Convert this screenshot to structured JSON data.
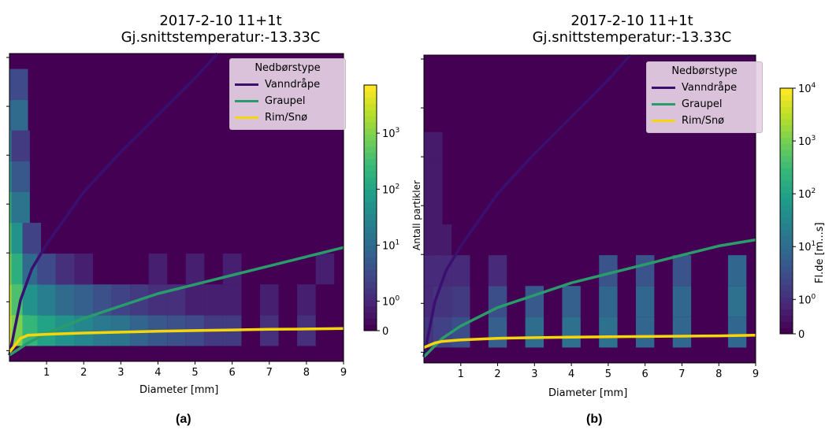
{
  "panels": [
    {
      "caption": "(a)",
      "title_line1": "2017-2-10 11+1t",
      "title_line2": "Gj.snittstemperatur:-13.33C",
      "xlabel": "Diameter [mm]",
      "ylabel": "",
      "xticks": [
        "1",
        "2",
        "3",
        "4",
        "5",
        "6",
        "7",
        "8",
        "9"
      ],
      "colorbar_ticks": [
        "0",
        "10^0",
        "10^1",
        "10^2",
        "10^3"
      ],
      "colorbar_label": "",
      "legend": {
        "title": "Nedbørstype",
        "items": [
          {
            "label": "Vanndråpe",
            "color": "#3b0f70"
          },
          {
            "label": "Graupel",
            "color": "#2a9c6b"
          },
          {
            "label": "Rim/Snø",
            "color": "#f5d60a"
          }
        ]
      }
    },
    {
      "caption": "(b)",
      "title_line1": "2017-2-10 11+1t",
      "title_line2": "Gj.snittstemperatur:-13.33C",
      "xlabel": "Diameter [mm]",
      "ylabel": "Antall partikler",
      "xticks": [
        "1",
        "2",
        "3",
        "4",
        "5",
        "6",
        "7",
        "8",
        "9"
      ],
      "colorbar_ticks": [
        "0",
        "10^0",
        "10^1",
        "10^2",
        "10^3",
        "10^4"
      ],
      "colorbar_label": "Fl.de [m...s]",
      "legend": {
        "title": "Nedbørstype",
        "items": [
          {
            "label": "Vanndråpe",
            "color": "#3b0f70"
          },
          {
            "label": "Graupel",
            "color": "#2a9c6b"
          },
          {
            "label": "Rim/Snø",
            "color": "#f5d60a"
          }
        ]
      }
    }
  ],
  "chart_data": [
    {
      "type": "heatmap",
      "title": "2017-2-10 11+1t Gj.snittstemperatur:-13.33C",
      "xlabel": "Diameter [mm]",
      "ylabel": "",
      "xlim": [
        0,
        9
      ],
      "colorbar": {
        "scale": "log",
        "ticks": [
          "0",
          "10^0",
          "10^1",
          "10^2",
          "10^3"
        ],
        "max": 3000
      },
      "cells": [
        {
          "x": 0.1,
          "y": 0.1,
          "v": 2000
        },
        {
          "x": 0.1,
          "y": 0.2,
          "v": 1500
        },
        {
          "x": 0.1,
          "y": 0.3,
          "v": 800
        },
        {
          "x": 0.1,
          "y": 0.4,
          "v": 400
        },
        {
          "x": 0.1,
          "y": 0.5,
          "v": 200
        },
        {
          "x": 0.1,
          "y": 0.6,
          "v": 80
        },
        {
          "x": 0.1,
          "y": 0.7,
          "v": 40
        },
        {
          "x": 0.1,
          "y": 0.8,
          "v": 15
        },
        {
          "x": 0.1,
          "y": 0.9,
          "v": 5
        },
        {
          "x": 0.3,
          "y": 0.1,
          "v": 600
        },
        {
          "x": 0.3,
          "y": 0.2,
          "v": 300
        },
        {
          "x": 0.3,
          "y": 0.3,
          "v": 150
        },
        {
          "x": 0.3,
          "y": 0.4,
          "v": 60
        },
        {
          "x": 0.3,
          "y": 0.5,
          "v": 20
        },
        {
          "x": 0.3,
          "y": 0.6,
          "v": 8
        },
        {
          "x": 0.3,
          "y": 0.7,
          "v": 3
        },
        {
          "x": 0.6,
          "y": 0.1,
          "v": 200
        },
        {
          "x": 0.6,
          "y": 0.2,
          "v": 60
        },
        {
          "x": 0.6,
          "y": 0.3,
          "v": 15
        },
        {
          "x": 0.6,
          "y": 0.4,
          "v": 4
        },
        {
          "x": 1.0,
          "y": 0.1,
          "v": 100
        },
        {
          "x": 1.0,
          "y": 0.2,
          "v": 30
        },
        {
          "x": 1.0,
          "y": 0.3,
          "v": 5
        },
        {
          "x": 1.5,
          "y": 0.1,
          "v": 60
        },
        {
          "x": 1.5,
          "y": 0.2,
          "v": 15
        },
        {
          "x": 1.5,
          "y": 0.3,
          "v": 2
        },
        {
          "x": 2.0,
          "y": 0.1,
          "v": 40
        },
        {
          "x": 2.0,
          "y": 0.2,
          "v": 10
        },
        {
          "x": 2.0,
          "y": 0.3,
          "v": 1
        },
        {
          "x": 2.5,
          "y": 0.1,
          "v": 25
        },
        {
          "x": 2.5,
          "y": 0.2,
          "v": 6
        },
        {
          "x": 3.0,
          "y": 0.1,
          "v": 20
        },
        {
          "x": 3.0,
          "y": 0.2,
          "v": 4
        },
        {
          "x": 3.5,
          "y": 0.1,
          "v": 12
        },
        {
          "x": 3.5,
          "y": 0.2,
          "v": 3
        },
        {
          "x": 4.0,
          "y": 0.1,
          "v": 8
        },
        {
          "x": 4.0,
          "y": 0.2,
          "v": 2
        },
        {
          "x": 4.0,
          "y": 0.3,
          "v": 1
        },
        {
          "x": 4.5,
          "y": 0.1,
          "v": 6
        },
        {
          "x": 4.5,
          "y": 0.2,
          "v": 2
        },
        {
          "x": 5.0,
          "y": 0.1,
          "v": 5
        },
        {
          "x": 5.0,
          "y": 0.2,
          "v": 1
        },
        {
          "x": 5.0,
          "y": 0.3,
          "v": 1
        },
        {
          "x": 5.5,
          "y": 0.1,
          "v": 3
        },
        {
          "x": 5.5,
          "y": 0.2,
          "v": 1
        },
        {
          "x": 6.0,
          "y": 0.1,
          "v": 3
        },
        {
          "x": 6.0,
          "y": 0.2,
          "v": 1
        },
        {
          "x": 6.0,
          "y": 0.3,
          "v": 1
        },
        {
          "x": 7.0,
          "y": 0.1,
          "v": 2
        },
        {
          "x": 7.0,
          "y": 0.2,
          "v": 1
        },
        {
          "x": 8.0,
          "y": 0.1,
          "v": 2
        },
        {
          "x": 8.0,
          "y": 0.2,
          "v": 1
        },
        {
          "x": 8.5,
          "y": 0.3,
          "v": 1
        }
      ],
      "series": [
        {
          "name": "Vanndråpe",
          "x": [
            0,
            0.3,
            0.6,
            1,
            2,
            3,
            4,
            5,
            5.6
          ],
          "y": [
            0.02,
            0.2,
            0.3,
            0.38,
            0.55,
            0.68,
            0.8,
            0.92,
            1.0
          ]
        },
        {
          "name": "Graupel",
          "x": [
            0,
            0.5,
            1,
            2,
            3,
            4,
            5,
            6,
            7,
            8,
            9
          ],
          "y": [
            0.02,
            0.06,
            0.09,
            0.14,
            0.18,
            0.22,
            0.25,
            0.28,
            0.31,
            0.34,
            0.37
          ]
        },
        {
          "name": "Rim/Snø",
          "x": [
            0,
            0.3,
            0.5,
            1,
            2,
            3,
            4,
            5,
            6,
            7,
            8,
            9
          ],
          "y": [
            0.03,
            0.075,
            0.085,
            0.088,
            0.092,
            0.095,
            0.098,
            0.1,
            0.102,
            0.104,
            0.105,
            0.107
          ]
        }
      ]
    },
    {
      "type": "heatmap",
      "title": "2017-2-10 11+1t Gj.snittstemperatur:-13.33C",
      "xlabel": "Diameter [mm]",
      "ylabel": "Antall partikler",
      "xlim": [
        0,
        9
      ],
      "colorbar": {
        "scale": "log",
        "ticks": [
          "0",
          "10^0",
          "10^1",
          "10^2",
          "10^3",
          "10^4"
        ],
        "max": 10000
      },
      "cells": [
        {
          "x": 0.1,
          "y": 0.1,
          "v": 3
        },
        {
          "x": 0.1,
          "y": 0.2,
          "v": 2
        },
        {
          "x": 0.1,
          "y": 0.3,
          "v": 2
        },
        {
          "x": 0.1,
          "y": 0.4,
          "v": 1
        },
        {
          "x": 0.1,
          "y": 0.5,
          "v": 1
        },
        {
          "x": 0.1,
          "y": 0.6,
          "v": 1
        },
        {
          "x": 0.1,
          "y": 0.7,
          "v": 1
        },
        {
          "x": 0.5,
          "y": 0.1,
          "v": 5
        },
        {
          "x": 0.5,
          "y": 0.2,
          "v": 3
        },
        {
          "x": 0.5,
          "y": 0.3,
          "v": 2
        },
        {
          "x": 0.5,
          "y": 0.4,
          "v": 1
        },
        {
          "x": 1.0,
          "y": 0.1,
          "v": 8
        },
        {
          "x": 1.0,
          "y": 0.2,
          "v": 4
        },
        {
          "x": 1.0,
          "y": 0.3,
          "v": 2
        },
        {
          "x": 2.0,
          "y": 0.1,
          "v": 15
        },
        {
          "x": 2.0,
          "y": 0.2,
          "v": 8
        },
        {
          "x": 2.0,
          "y": 0.3,
          "v": 2
        },
        {
          "x": 3.0,
          "y": 0.1,
          "v": 25
        },
        {
          "x": 3.0,
          "y": 0.2,
          "v": 12
        },
        {
          "x": 4.0,
          "y": 0.1,
          "v": 30
        },
        {
          "x": 4.0,
          "y": 0.2,
          "v": 15
        },
        {
          "x": 5.0,
          "y": 0.1,
          "v": 30
        },
        {
          "x": 5.0,
          "y": 0.2,
          "v": 20
        },
        {
          "x": 5.0,
          "y": 0.3,
          "v": 10
        },
        {
          "x": 6.0,
          "y": 0.1,
          "v": 20
        },
        {
          "x": 6.0,
          "y": 0.2,
          "v": 20
        },
        {
          "x": 6.0,
          "y": 0.3,
          "v": 10
        },
        {
          "x": 7.0,
          "y": 0.1,
          "v": 20
        },
        {
          "x": 7.0,
          "y": 0.2,
          "v": 20
        },
        {
          "x": 7.0,
          "y": 0.3,
          "v": 10
        },
        {
          "x": 8.5,
          "y": 0.1,
          "v": 20
        },
        {
          "x": 8.5,
          "y": 0.2,
          "v": 30
        },
        {
          "x": 8.5,
          "y": 0.3,
          "v": 20
        }
      ],
      "series": [
        {
          "name": "Vanndråpe",
          "x": [
            0,
            0.3,
            0.6,
            1,
            2,
            3,
            4,
            5,
            5.6
          ],
          "y": [
            0.02,
            0.2,
            0.3,
            0.38,
            0.55,
            0.68,
            0.8,
            0.92,
            1.0
          ]
        },
        {
          "name": "Graupel",
          "x": [
            0,
            0.5,
            1,
            2,
            3,
            4,
            5,
            6,
            7,
            8,
            9
          ],
          "y": [
            0.02,
            0.08,
            0.12,
            0.18,
            0.22,
            0.26,
            0.29,
            0.32,
            0.35,
            0.38,
            0.4
          ]
        },
        {
          "name": "Rim/Snø",
          "x": [
            0,
            0.3,
            0.5,
            1,
            2,
            3,
            4,
            5,
            6,
            7,
            8,
            9
          ],
          "y": [
            0.05,
            0.065,
            0.07,
            0.075,
            0.08,
            0.082,
            0.084,
            0.085,
            0.086,
            0.087,
            0.088,
            0.09
          ]
        }
      ]
    }
  ]
}
